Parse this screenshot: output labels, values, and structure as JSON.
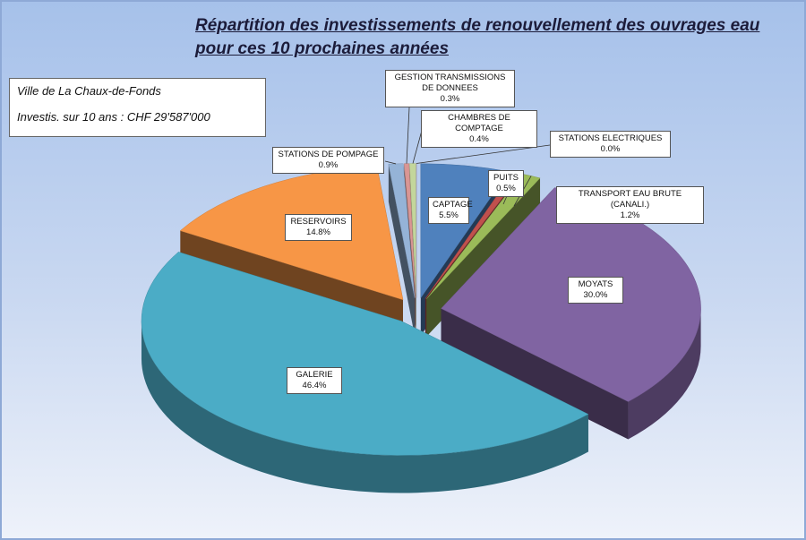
{
  "chart_data": {
    "type": "pie3d",
    "title": "Répartition des investissements de renouvellement des ouvrages eau pour ces 10 prochaines années",
    "annotations": [
      "Ville de La Chaux-de-Fonds",
      "Investis. sur 10 ans : CHF 29'587'000"
    ],
    "categories": [
      "CAPTAGE",
      "PUITS",
      "TRANSPORT EAU BRUTE (CANALI.)",
      "MOYATS",
      "GALERIE",
      "RESERVOIRS",
      "STATIONS DE POMPAGE",
      "GESTION TRANSMISSIONS DE DONNEES",
      "CHAMBRES DE COMPTAGE",
      "STATIONS ELECTRIQUES"
    ],
    "values": [
      5.5,
      0.5,
      1.2,
      30.0,
      46.4,
      14.8,
      0.9,
      0.3,
      0.4,
      0.0
    ],
    "value_labels": [
      "5.5%",
      "0.5%",
      "1.2%",
      "30.0%",
      "46.4%",
      "14.8%",
      "0.9%",
      "0.3%",
      "0.4%",
      "0.0%"
    ],
    "colors": [
      "#4f81bd",
      "#c0504d",
      "#9bbb59",
      "#8064a2",
      "#4bacc6",
      "#f79646",
      "#95b3d7",
      "#d99694",
      "#c3d69b",
      "#b3a2c7"
    ]
  }
}
